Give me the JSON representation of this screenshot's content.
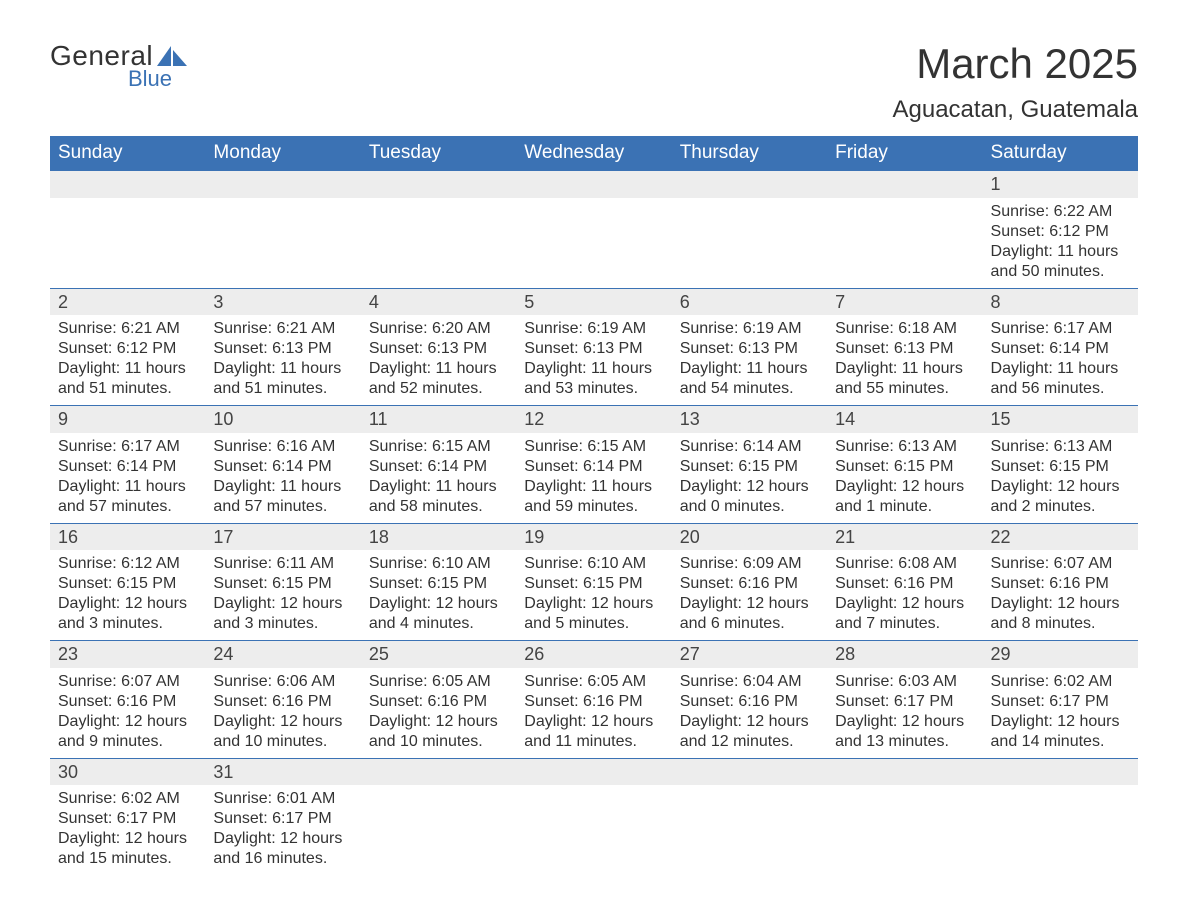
{
  "logo": {
    "main": "General",
    "sub": "Blue",
    "icon_color": "#3b72b4"
  },
  "title": "March 2025",
  "location": "Aguacatan, Guatemala",
  "colors": {
    "header_bg": "#3b72b4",
    "header_text": "#ffffff",
    "daynum_bg": "#ededed",
    "row_divider": "#3b72b4",
    "body_text": "#333333"
  },
  "weekdays": [
    "Sunday",
    "Monday",
    "Tuesday",
    "Wednesday",
    "Thursday",
    "Friday",
    "Saturday"
  ],
  "weeks": [
    [
      null,
      null,
      null,
      null,
      null,
      null,
      {
        "n": "1",
        "sunrise": "Sunrise: 6:22 AM",
        "sunset": "Sunset: 6:12 PM",
        "d1": "Daylight: 11 hours",
        "d2": "and 50 minutes."
      }
    ],
    [
      {
        "n": "2",
        "sunrise": "Sunrise: 6:21 AM",
        "sunset": "Sunset: 6:12 PM",
        "d1": "Daylight: 11 hours",
        "d2": "and 51 minutes."
      },
      {
        "n": "3",
        "sunrise": "Sunrise: 6:21 AM",
        "sunset": "Sunset: 6:13 PM",
        "d1": "Daylight: 11 hours",
        "d2": "and 51 minutes."
      },
      {
        "n": "4",
        "sunrise": "Sunrise: 6:20 AM",
        "sunset": "Sunset: 6:13 PM",
        "d1": "Daylight: 11 hours",
        "d2": "and 52 minutes."
      },
      {
        "n": "5",
        "sunrise": "Sunrise: 6:19 AM",
        "sunset": "Sunset: 6:13 PM",
        "d1": "Daylight: 11 hours",
        "d2": "and 53 minutes."
      },
      {
        "n": "6",
        "sunrise": "Sunrise: 6:19 AM",
        "sunset": "Sunset: 6:13 PM",
        "d1": "Daylight: 11 hours",
        "d2": "and 54 minutes."
      },
      {
        "n": "7",
        "sunrise": "Sunrise: 6:18 AM",
        "sunset": "Sunset: 6:13 PM",
        "d1": "Daylight: 11 hours",
        "d2": "and 55 minutes."
      },
      {
        "n": "8",
        "sunrise": "Sunrise: 6:17 AM",
        "sunset": "Sunset: 6:14 PM",
        "d1": "Daylight: 11 hours",
        "d2": "and 56 minutes."
      }
    ],
    [
      {
        "n": "9",
        "sunrise": "Sunrise: 6:17 AM",
        "sunset": "Sunset: 6:14 PM",
        "d1": "Daylight: 11 hours",
        "d2": "and 57 minutes."
      },
      {
        "n": "10",
        "sunrise": "Sunrise: 6:16 AM",
        "sunset": "Sunset: 6:14 PM",
        "d1": "Daylight: 11 hours",
        "d2": "and 57 minutes."
      },
      {
        "n": "11",
        "sunrise": "Sunrise: 6:15 AM",
        "sunset": "Sunset: 6:14 PM",
        "d1": "Daylight: 11 hours",
        "d2": "and 58 minutes."
      },
      {
        "n": "12",
        "sunrise": "Sunrise: 6:15 AM",
        "sunset": "Sunset: 6:14 PM",
        "d1": "Daylight: 11 hours",
        "d2": "and 59 minutes."
      },
      {
        "n": "13",
        "sunrise": "Sunrise: 6:14 AM",
        "sunset": "Sunset: 6:15 PM",
        "d1": "Daylight: 12 hours",
        "d2": "and 0 minutes."
      },
      {
        "n": "14",
        "sunrise": "Sunrise: 6:13 AM",
        "sunset": "Sunset: 6:15 PM",
        "d1": "Daylight: 12 hours",
        "d2": "and 1 minute."
      },
      {
        "n": "15",
        "sunrise": "Sunrise: 6:13 AM",
        "sunset": "Sunset: 6:15 PM",
        "d1": "Daylight: 12 hours",
        "d2": "and 2 minutes."
      }
    ],
    [
      {
        "n": "16",
        "sunrise": "Sunrise: 6:12 AM",
        "sunset": "Sunset: 6:15 PM",
        "d1": "Daylight: 12 hours",
        "d2": "and 3 minutes."
      },
      {
        "n": "17",
        "sunrise": "Sunrise: 6:11 AM",
        "sunset": "Sunset: 6:15 PM",
        "d1": "Daylight: 12 hours",
        "d2": "and 3 minutes."
      },
      {
        "n": "18",
        "sunrise": "Sunrise: 6:10 AM",
        "sunset": "Sunset: 6:15 PM",
        "d1": "Daylight: 12 hours",
        "d2": "and 4 minutes."
      },
      {
        "n": "19",
        "sunrise": "Sunrise: 6:10 AM",
        "sunset": "Sunset: 6:15 PM",
        "d1": "Daylight: 12 hours",
        "d2": "and 5 minutes."
      },
      {
        "n": "20",
        "sunrise": "Sunrise: 6:09 AM",
        "sunset": "Sunset: 6:16 PM",
        "d1": "Daylight: 12 hours",
        "d2": "and 6 minutes."
      },
      {
        "n": "21",
        "sunrise": "Sunrise: 6:08 AM",
        "sunset": "Sunset: 6:16 PM",
        "d1": "Daylight: 12 hours",
        "d2": "and 7 minutes."
      },
      {
        "n": "22",
        "sunrise": "Sunrise: 6:07 AM",
        "sunset": "Sunset: 6:16 PM",
        "d1": "Daylight: 12 hours",
        "d2": "and 8 minutes."
      }
    ],
    [
      {
        "n": "23",
        "sunrise": "Sunrise: 6:07 AM",
        "sunset": "Sunset: 6:16 PM",
        "d1": "Daylight: 12 hours",
        "d2": "and 9 minutes."
      },
      {
        "n": "24",
        "sunrise": "Sunrise: 6:06 AM",
        "sunset": "Sunset: 6:16 PM",
        "d1": "Daylight: 12 hours",
        "d2": "and 10 minutes."
      },
      {
        "n": "25",
        "sunrise": "Sunrise: 6:05 AM",
        "sunset": "Sunset: 6:16 PM",
        "d1": "Daylight: 12 hours",
        "d2": "and 10 minutes."
      },
      {
        "n": "26",
        "sunrise": "Sunrise: 6:05 AM",
        "sunset": "Sunset: 6:16 PM",
        "d1": "Daylight: 12 hours",
        "d2": "and 11 minutes."
      },
      {
        "n": "27",
        "sunrise": "Sunrise: 6:04 AM",
        "sunset": "Sunset: 6:16 PM",
        "d1": "Daylight: 12 hours",
        "d2": "and 12 minutes."
      },
      {
        "n": "28",
        "sunrise": "Sunrise: 6:03 AM",
        "sunset": "Sunset: 6:17 PM",
        "d1": "Daylight: 12 hours",
        "d2": "and 13 minutes."
      },
      {
        "n": "29",
        "sunrise": "Sunrise: 6:02 AM",
        "sunset": "Sunset: 6:17 PM",
        "d1": "Daylight: 12 hours",
        "d2": "and 14 minutes."
      }
    ],
    [
      {
        "n": "30",
        "sunrise": "Sunrise: 6:02 AM",
        "sunset": "Sunset: 6:17 PM",
        "d1": "Daylight: 12 hours",
        "d2": "and 15 minutes."
      },
      {
        "n": "31",
        "sunrise": "Sunrise: 6:01 AM",
        "sunset": "Sunset: 6:17 PM",
        "d1": "Daylight: 12 hours",
        "d2": "and 16 minutes."
      },
      null,
      null,
      null,
      null,
      null
    ]
  ]
}
